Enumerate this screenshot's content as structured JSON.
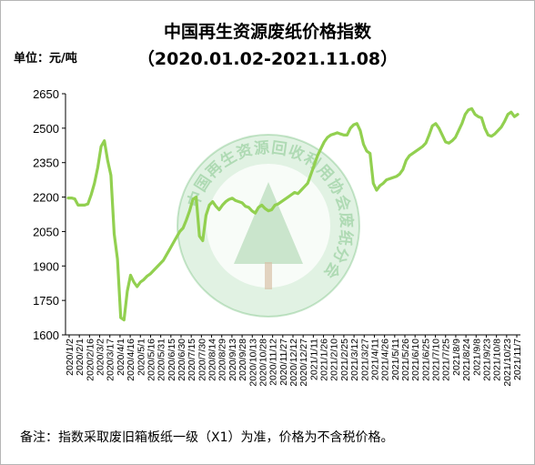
{
  "header": {
    "title": "中国再生资源废纸价格指数",
    "subtitle": "（2020.01.02-2021.11.08）",
    "unit": "单位：元/吨"
  },
  "footer": {
    "note": "备注：指数采取废旧箱板纸一级（X1）为准，价格为不含税价格。"
  },
  "watermark": {
    "text": "中国再生资源回收利用协会废纸分会"
  },
  "colors": {
    "line": "#92d050",
    "axis": "#000000",
    "watermark": "#2e9e3a"
  },
  "chart_data": {
    "type": "line",
    "ylim": [
      1600,
      2650
    ],
    "yticks": [
      1600,
      1750,
      1900,
      2050,
      2200,
      2350,
      2500,
      2650
    ],
    "grid": false,
    "xlabels": [
      "2020/1/2",
      "2020/2/1",
      "2020/2/16",
      "2020/3/2",
      "2020/3/17",
      "2020/4/1",
      "2020/4/16",
      "2020/5/1",
      "2020/5/16",
      "2020/5/31",
      "2020/6/15",
      "2020/6/30",
      "2020/7/15",
      "2020/7/30",
      "2020/8/14",
      "2020/8/29",
      "2020/9/13",
      "2020/9/28",
      "2020/10/13",
      "2020/10/28",
      "2020/11/12",
      "2020/11/27",
      "2020/12/12",
      "2020/12/27",
      "2021/1/11",
      "2021/1/26",
      "2021/2/10",
      "2021/2/25",
      "2021/3/12",
      "2021/3/27",
      "2021/4/11",
      "2021/4/26",
      "2021/5/11",
      "2021/5/26",
      "2021/6/10",
      "2021/6/25",
      "2021/7/10",
      "2021/7/25",
      "2021/8/9",
      "2021/8/24",
      "2021/9/8",
      "2021/9/23",
      "2021/10/8",
      "2021/10/23",
      "2021/11/7"
    ],
    "series": [
      {
        "values": [
          2196,
          2196,
          2192,
          2165,
          2165,
          2165,
          2170,
          2210,
          2260,
          2330,
          2420,
          2445,
          2360,
          2295,
          2040,
          1930,
          1675,
          1665,
          1790,
          1860,
          1830,
          1810,
          1830,
          1840,
          1855,
          1865,
          1880,
          1895,
          1910,
          1925,
          1950,
          1975,
          2000,
          2025,
          2050,
          2065,
          2100,
          2140,
          2190,
          2200,
          2030,
          2010,
          2120,
          2165,
          2180,
          2160,
          2145,
          2165,
          2180,
          2190,
          2195,
          2185,
          2180,
          2175,
          2160,
          2155,
          2140,
          2130,
          2155,
          2165,
          2150,
          2140,
          2145,
          2165,
          2170,
          2180,
          2190,
          2200,
          2210,
          2220,
          2215,
          2230,
          2245,
          2260,
          2300,
          2340,
          2380,
          2410,
          2440,
          2460,
          2470,
          2475,
          2480,
          2475,
          2470,
          2470,
          2500,
          2515,
          2520,
          2490,
          2430,
          2400,
          2390,
          2260,
          2230,
          2250,
          2260,
          2275,
          2280,
          2285,
          2290,
          2300,
          2320,
          2360,
          2380,
          2390,
          2400,
          2410,
          2420,
          2435,
          2470,
          2510,
          2520,
          2500,
          2470,
          2440,
          2435,
          2445,
          2460,
          2490,
          2520,
          2560,
          2580,
          2585,
          2560,
          2550,
          2545,
          2500,
          2470,
          2465,
          2475,
          2490,
          2505,
          2530,
          2560,
          2570,
          2550,
          2560
        ]
      }
    ]
  }
}
